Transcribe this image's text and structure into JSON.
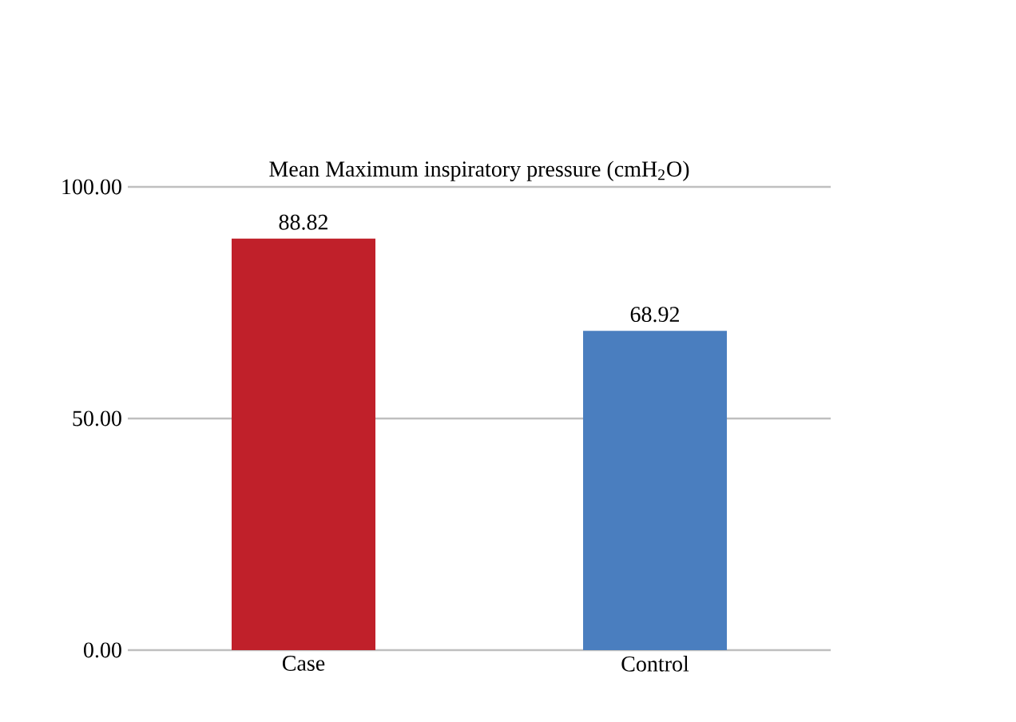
{
  "chart_data": {
    "type": "bar",
    "title": "Mean Maximum inspiratory pressure (cmH$_{2}$O)",
    "categories": [
      "Case",
      "Control"
    ],
    "values": [
      88.82,
      68.92
    ],
    "colors": [
      "#c0202a",
      "#4a7ebf"
    ],
    "ylim": [
      0,
      100
    ],
    "yticks": [
      {
        "value": 0,
        "label": "0.00"
      },
      {
        "value": 50,
        "label": "50.00"
      },
      {
        "value": 100,
        "label": "100.00"
      }
    ],
    "grid": "y",
    "data_labels": true
  }
}
